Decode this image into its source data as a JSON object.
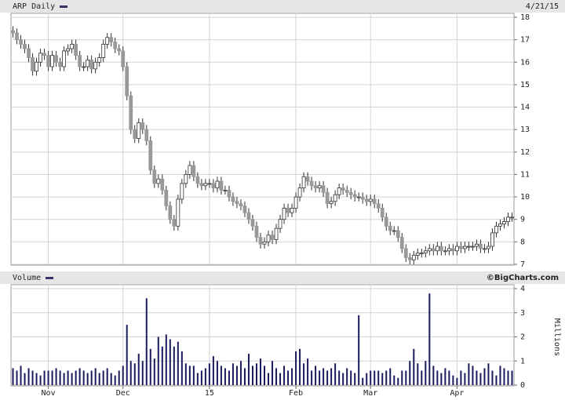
{
  "chart_data": [
    {
      "type": "candlestick",
      "title": "ARP Daily",
      "date": "4/21/15",
      "up_color": "#ffffff",
      "down_color": "#999999",
      "outline_color": "#333333",
      "legend_color": "#333366",
      "open": [
        17.4,
        17.3,
        17.0,
        16.8,
        16.6,
        16.2,
        15.6,
        16.0,
        16.4,
        16.3,
        15.8,
        16.3,
        16.0,
        15.8,
        16.5,
        16.6,
        16.8,
        16.3,
        15.8,
        15.8,
        16.1,
        15.7,
        16.0,
        16.2,
        16.8,
        17.1,
        16.9,
        16.6,
        16.5,
        15.8,
        14.5,
        13.0,
        12.6,
        13.3,
        13.0,
        12.5,
        11.2,
        10.6,
        10.8,
        10.3,
        9.6,
        9.0,
        8.7,
        9.9,
        10.6,
        11.0,
        11.4,
        10.9,
        10.6,
        10.5,
        10.6,
        10.6,
        10.4,
        10.7,
        10.3,
        10.3,
        10.0,
        9.8,
        9.7,
        9.6,
        9.3,
        9.0,
        8.7,
        8.2,
        7.9,
        8.0,
        8.3,
        8.1,
        8.6,
        9.0,
        9.5,
        9.3,
        9.5,
        10.0,
        10.4,
        10.9,
        10.7,
        10.5,
        10.4,
        10.5,
        10.2,
        9.7,
        9.8,
        10.1,
        10.4,
        10.3,
        10.2,
        10.1,
        10.0,
        10.0,
        9.9,
        9.8,
        9.9,
        9.7,
        9.5,
        9.1,
        8.7,
        8.5,
        8.5,
        8.2,
        7.7,
        7.3,
        7.2,
        7.4,
        7.5,
        7.5,
        7.6,
        7.7,
        7.6,
        7.8,
        7.6,
        7.6,
        7.7,
        7.6,
        7.8,
        7.7,
        7.8,
        7.8,
        7.8,
        7.9,
        7.7,
        7.7,
        7.8,
        8.4,
        8.7,
        8.8,
        8.9,
        9.1
      ],
      "high": [
        17.6,
        17.5,
        17.2,
        17.0,
        16.8,
        16.4,
        16.2,
        16.6,
        16.6,
        16.5,
        16.5,
        16.5,
        16.2,
        16.7,
        16.8,
        17.0,
        17.0,
        16.5,
        16.0,
        16.3,
        16.3,
        16.2,
        16.4,
        17.0,
        17.3,
        17.3,
        17.1,
        16.8,
        16.7,
        16.0,
        14.7,
        13.2,
        13.5,
        13.5,
        13.2,
        12.7,
        11.4,
        11.0,
        11.0,
        10.5,
        9.8,
        9.2,
        10.1,
        10.8,
        11.2,
        11.6,
        11.6,
        11.1,
        10.8,
        10.8,
        10.8,
        10.8,
        10.9,
        10.9,
        10.5,
        10.5,
        10.2,
        10.0,
        9.9,
        9.8,
        9.5,
        9.2,
        8.9,
        8.4,
        8.2,
        8.5,
        8.5,
        8.8,
        9.2,
        9.7,
        9.7,
        9.7,
        10.2,
        10.6,
        11.1,
        11.1,
        10.9,
        10.7,
        10.7,
        10.7,
        10.4,
        10.0,
        10.3,
        10.6,
        10.6,
        10.5,
        10.4,
        10.3,
        10.2,
        10.2,
        10.1,
        10.1,
        10.1,
        9.9,
        9.7,
        9.3,
        8.9,
        8.7,
        8.7,
        8.4,
        7.9,
        7.5,
        7.6,
        7.7,
        7.7,
        7.8,
        7.9,
        7.9,
        8.0,
        8.0,
        7.8,
        7.9,
        7.9,
        8.0,
        8.0,
        8.0,
        8.0,
        8.0,
        8.1,
        8.1,
        7.9,
        8.0,
        8.6,
        8.9,
        9.0,
        9.1,
        9.3,
        9.3
      ],
      "low": [
        17.1,
        16.8,
        16.6,
        16.4,
        16.0,
        15.4,
        15.4,
        15.8,
        16.1,
        15.6,
        15.6,
        15.8,
        15.6,
        15.6,
        16.3,
        16.4,
        16.1,
        15.6,
        15.6,
        15.6,
        15.5,
        15.5,
        15.8,
        16.0,
        16.6,
        16.7,
        16.4,
        16.3,
        15.6,
        14.3,
        12.8,
        12.4,
        12.4,
        12.8,
        12.3,
        11.0,
        10.4,
        10.4,
        10.1,
        9.4,
        8.8,
        8.5,
        8.5,
        9.7,
        10.4,
        10.8,
        10.7,
        10.4,
        10.3,
        10.3,
        10.4,
        10.2,
        10.2,
        10.1,
        10.1,
        9.8,
        9.6,
        9.5,
        9.4,
        9.1,
        8.8,
        8.5,
        8.0,
        7.7,
        7.7,
        7.8,
        7.9,
        7.9,
        8.4,
        8.8,
        9.1,
        9.1,
        9.3,
        9.8,
        10.2,
        10.5,
        10.3,
        10.2,
        10.2,
        10.0,
        9.5,
        9.5,
        9.6,
        9.9,
        10.1,
        10.0,
        9.9,
        9.8,
        9.8,
        9.7,
        9.6,
        9.6,
        9.5,
        9.3,
        8.9,
        8.5,
        8.3,
        8.3,
        8.0,
        7.5,
        7.1,
        7.0,
        7.0,
        7.2,
        7.3,
        7.3,
        7.4,
        7.4,
        7.4,
        7.4,
        7.4,
        7.4,
        7.4,
        7.4,
        7.5,
        7.5,
        7.6,
        7.6,
        7.6,
        7.5,
        7.5,
        7.5,
        7.6,
        8.2,
        8.5,
        8.6,
        8.7,
        8.9
      ],
      "close": [
        17.3,
        17.0,
        16.8,
        16.6,
        16.2,
        15.6,
        16.0,
        16.4,
        16.3,
        15.8,
        16.3,
        16.0,
        15.8,
        16.5,
        16.6,
        16.8,
        16.3,
        15.8,
        15.8,
        16.1,
        15.7,
        16.0,
        16.2,
        16.8,
        17.1,
        16.9,
        16.6,
        16.5,
        15.8,
        14.5,
        13.0,
        12.6,
        13.3,
        13.0,
        12.5,
        11.2,
        10.6,
        10.8,
        10.3,
        9.6,
        9.0,
        8.7,
        9.9,
        10.6,
        11.0,
        11.4,
        10.9,
        10.6,
        10.5,
        10.6,
        10.6,
        10.4,
        10.7,
        10.3,
        10.3,
        10.0,
        9.8,
        9.7,
        9.6,
        9.3,
        9.0,
        8.7,
        8.2,
        7.9,
        8.0,
        8.3,
        8.1,
        8.6,
        9.0,
        9.5,
        9.3,
        9.5,
        10.0,
        10.4,
        10.9,
        10.7,
        10.5,
        10.4,
        10.5,
        10.2,
        9.7,
        9.8,
        10.1,
        10.4,
        10.3,
        10.2,
        10.1,
        10.0,
        10.0,
        9.9,
        9.8,
        9.9,
        9.7,
        9.5,
        9.1,
        8.7,
        8.5,
        8.5,
        8.2,
        7.7,
        7.3,
        7.2,
        7.4,
        7.5,
        7.5,
        7.6,
        7.7,
        7.6,
        7.8,
        7.6,
        7.6,
        7.7,
        7.6,
        7.8,
        7.7,
        7.8,
        7.8,
        7.8,
        7.9,
        7.7,
        7.7,
        7.8,
        8.4,
        8.7,
        8.8,
        8.9,
        9.1,
        9.1
      ],
      "ylim": [
        7,
        18
      ],
      "yticks": [
        7,
        8,
        9,
        10,
        11,
        12,
        13,
        14,
        15,
        16,
        17,
        18
      ],
      "grid": true
    },
    {
      "type": "bar",
      "title": "Volume",
      "credit": "©BigCharts.com",
      "y_label": "Millions",
      "color": "#1a1a5e",
      "legend_color": "#333366",
      "categories": [
        null,
        null,
        null,
        null,
        null,
        null,
        null,
        null,
        null,
        "Nov",
        null,
        null,
        null,
        null,
        null,
        null,
        null,
        null,
        null,
        null,
        null,
        null,
        null,
        null,
        null,
        null,
        null,
        null,
        "Dec",
        null,
        null,
        null,
        null,
        null,
        null,
        null,
        null,
        null,
        null,
        null,
        null,
        null,
        null,
        null,
        null,
        null,
        null,
        null,
        null,
        null,
        "15",
        null,
        null,
        null,
        null,
        null,
        null,
        null,
        null,
        null,
        null,
        null,
        null,
        null,
        null,
        null,
        null,
        null,
        null,
        null,
        null,
        null,
        "Feb",
        null,
        null,
        null,
        null,
        null,
        null,
        null,
        null,
        null,
        null,
        null,
        null,
        null,
        null,
        null,
        null,
        null,
        null,
        "Mar",
        null,
        null,
        null,
        null,
        null,
        null,
        null,
        null,
        null,
        null,
        null,
        null,
        null,
        null,
        null,
        null,
        null,
        null,
        null,
        null,
        null,
        "Apr",
        null,
        null,
        null,
        null,
        null,
        null,
        null,
        null,
        null,
        null,
        null,
        null,
        null,
        null
      ],
      "values": [
        0.7,
        0.6,
        0.8,
        0.5,
        0.7,
        0.6,
        0.5,
        0.4,
        0.6,
        0.6,
        0.6,
        0.7,
        0.6,
        0.5,
        0.6,
        0.5,
        0.6,
        0.7,
        0.6,
        0.5,
        0.6,
        0.7,
        0.5,
        0.6,
        0.7,
        0.5,
        0.4,
        0.6,
        0.8,
        2.5,
        1.0,
        0.9,
        1.3,
        1.0,
        3.6,
        1.5,
        1.1,
        2.0,
        1.6,
        2.1,
        1.9,
        1.6,
        1.8,
        1.4,
        0.9,
        0.8,
        0.8,
        0.5,
        0.6,
        0.7,
        0.9,
        1.2,
        1.0,
        0.8,
        0.7,
        0.6,
        0.9,
        0.8,
        1.0,
        0.7,
        1.3,
        0.8,
        0.9,
        1.1,
        0.8,
        0.5,
        1.0,
        0.7,
        0.5,
        0.8,
        0.6,
        0.7,
        1.4,
        1.5,
        0.9,
        1.1,
        0.6,
        0.8,
        0.6,
        0.7,
        0.6,
        0.7,
        0.9,
        0.6,
        0.5,
        0.7,
        0.6,
        0.5,
        2.9,
        0.3,
        0.5,
        0.6,
        0.6,
        0.6,
        0.5,
        0.6,
        0.7,
        0.4,
        0.3,
        0.6,
        0.6,
        1.0,
        1.5,
        0.9,
        0.6,
        1.0,
        3.8,
        0.8,
        0.6,
        0.5,
        0.7,
        0.6,
        0.4,
        0.3,
        0.6,
        0.5,
        0.9,
        0.8,
        0.6,
        0.5,
        0.7,
        0.9,
        0.6,
        0.4,
        0.8,
        0.7,
        0.6,
        0.6
      ],
      "ylim": [
        0,
        4
      ],
      "yticks": [
        0,
        1,
        2,
        3,
        4
      ],
      "grid": true
    }
  ]
}
